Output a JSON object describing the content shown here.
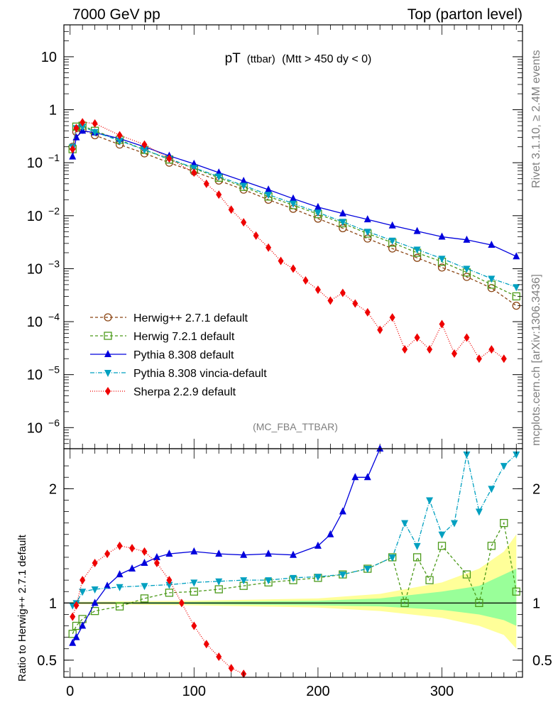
{
  "header": {
    "left": "7000 GeV pp",
    "right": "Top (parton level)"
  },
  "side_text": {
    "rivet": "Rivet 3.1.10, ≥ 2.4M events",
    "mcplots": "mcplots.cern.ch [arXiv:1306.3436]"
  },
  "plot_title": {
    "main": "pT",
    "sub": "(ttbar)",
    "cond": "(Mtt > 450 dy < 0)"
  },
  "analysis_label": "(MC_FBA_TTBAR)",
  "chart_data": [
    {
      "type": "line",
      "panel": "main",
      "scale": "log",
      "xlim": [
        -5,
        365
      ],
      "ylim": [
        4e-07,
        40
      ],
      "y_ticks": [
        {
          "v": 10,
          "label": "10"
        },
        {
          "v": 1,
          "label": "1"
        },
        {
          "v": 0.1,
          "label": "10",
          "exp": "−1"
        },
        {
          "v": 0.01,
          "label": "10",
          "exp": "−2"
        },
        {
          "v": 0.001,
          "label": "10",
          "exp": "−3"
        },
        {
          "v": 0.0001,
          "label": "10",
          "exp": "−4"
        },
        {
          "v": 1e-05,
          "label": "10",
          "exp": "−5"
        },
        {
          "v": 1e-06,
          "label": "10",
          "exp": "−6"
        }
      ],
      "legend_position": "lower-left",
      "series": [
        {
          "name": "Herwig++ 2.7.1 default",
          "color": "#8b4513",
          "marker": "circle-open",
          "dash": "4,3",
          "points": [
            [
              2,
              0.2
            ],
            [
              5,
              0.38
            ],
            [
              10,
              0.42
            ],
            [
              20,
              0.33
            ],
            [
              40,
              0.22
            ],
            [
              60,
              0.15
            ],
            [
              80,
              0.1
            ],
            [
              100,
              0.068
            ],
            [
              120,
              0.046
            ],
            [
              140,
              0.031
            ],
            [
              160,
              0.02
            ],
            [
              180,
              0.0135
            ],
            [
              200,
              0.0088
            ],
            [
              220,
              0.0058
            ],
            [
              240,
              0.0037
            ],
            [
              260,
              0.0024
            ],
            [
              280,
              0.0016
            ],
            [
              300,
              0.00105
            ],
            [
              320,
              0.0007
            ],
            [
              340,
              0.00043
            ],
            [
              360,
              0.0002
            ]
          ]
        },
        {
          "name": "Herwig 7.2.1 default",
          "color": "#4c9a1a",
          "marker": "square-open",
          "dash": "4,3",
          "points": [
            [
              2,
              0.18
            ],
            [
              5,
              0.48
            ],
            [
              10,
              0.5
            ],
            [
              20,
              0.4
            ],
            [
              40,
              0.27
            ],
            [
              60,
              0.175
            ],
            [
              80,
              0.115
            ],
            [
              100,
              0.078
            ],
            [
              120,
              0.052
            ],
            [
              140,
              0.035
            ],
            [
              160,
              0.023
            ],
            [
              180,
              0.0158
            ],
            [
              200,
              0.0107
            ],
            [
              220,
              0.0072
            ],
            [
              240,
              0.0046
            ],
            [
              260,
              0.0031
            ],
            [
              280,
              0.002
            ],
            [
              300,
              0.00135
            ],
            [
              320,
              0.00085
            ],
            [
              340,
              0.0005
            ],
            [
              360,
              0.0003
            ]
          ]
        },
        {
          "name": "Pythia 8.308 default",
          "color": "#0000dd",
          "marker": "triangle-up",
          "dash": "",
          "points": [
            [
              2,
              0.13
            ],
            [
              5,
              0.3
            ],
            [
              10,
              0.4
            ],
            [
              20,
              0.37
            ],
            [
              40,
              0.285
            ],
            [
              60,
              0.2
            ],
            [
              80,
              0.135
            ],
            [
              100,
              0.095
            ],
            [
              120,
              0.065
            ],
            [
              140,
              0.045
            ],
            [
              160,
              0.031
            ],
            [
              180,
              0.021
            ],
            [
              200,
              0.0145
            ],
            [
              220,
              0.011
            ],
            [
              240,
              0.0085
            ],
            [
              260,
              0.0065
            ],
            [
              280,
              0.0051
            ],
            [
              300,
              0.004
            ],
            [
              320,
              0.0035
            ],
            [
              340,
              0.0028
            ],
            [
              360,
              0.0017
            ]
          ]
        },
        {
          "name": "Pythia 8.308 vincia-default",
          "color": "#00a0c0",
          "marker": "triangle-down",
          "dash": "6,2,1,2",
          "points": [
            [
              2,
              0.2
            ],
            [
              5,
              0.45
            ],
            [
              10,
              0.48
            ],
            [
              20,
              0.38
            ],
            [
              40,
              0.26
            ],
            [
              60,
              0.175
            ],
            [
              80,
              0.118
            ],
            [
              100,
              0.08
            ],
            [
              120,
              0.055
            ],
            [
              140,
              0.037
            ],
            [
              160,
              0.025
            ],
            [
              180,
              0.017
            ],
            [
              200,
              0.0115
            ],
            [
              220,
              0.0077
            ],
            [
              240,
              0.005
            ],
            [
              260,
              0.0034
            ],
            [
              280,
              0.0023
            ],
            [
              300,
              0.00155
            ],
            [
              320,
              0.001
            ],
            [
              340,
              0.00065
            ],
            [
              360,
              0.00045
            ]
          ]
        },
        {
          "name": "Sherpa 2.2.9 default",
          "color": "#ee0000",
          "marker": "diamond",
          "dash": "1,2",
          "points": [
            [
              2,
              0.18
            ],
            [
              5,
              0.45
            ],
            [
              10,
              0.58
            ],
            [
              20,
              0.55
            ],
            [
              40,
              0.33
            ],
            [
              60,
              0.22
            ],
            [
              80,
              0.12
            ],
            [
              100,
              0.065
            ],
            [
              110,
              0.04
            ],
            [
              120,
              0.025
            ],
            [
              130,
              0.013
            ],
            [
              140,
              0.0075
            ],
            [
              150,
              0.0042
            ],
            [
              160,
              0.0025
            ],
            [
              170,
              0.0014
            ],
            [
              180,
              0.001
            ],
            [
              190,
              0.0006
            ],
            [
              200,
              0.0004
            ],
            [
              210,
              0.00025
            ],
            [
              220,
              0.00035
            ],
            [
              230,
              0.00022
            ],
            [
              240,
              0.00015
            ],
            [
              250,
              7e-05
            ],
            [
              260,
              0.00012
            ],
            [
              270,
              3e-05
            ],
            [
              280,
              5e-05
            ],
            [
              290,
              3e-05
            ],
            [
              300,
              9e-05
            ],
            [
              310,
              2.5e-05
            ],
            [
              320,
              5e-05
            ],
            [
              330,
              2e-05
            ],
            [
              340,
              3e-05
            ],
            [
              350,
              2e-05
            ]
          ]
        }
      ]
    },
    {
      "type": "line",
      "panel": "ratio",
      "ylabel": "Ratio to Herwig++ 2.7.1 default",
      "xlim": [
        -5,
        365
      ],
      "ylim": [
        0.35,
        2.35
      ],
      "y_ticks": [
        {
          "v": 0.5,
          "label": "0.5"
        },
        {
          "v": 1,
          "label": "1"
        },
        {
          "v": 2,
          "label": "2"
        }
      ],
      "x_ticks": [
        {
          "v": 0,
          "label": "0"
        },
        {
          "v": 100,
          "label": "100"
        },
        {
          "v": 200,
          "label": "200"
        },
        {
          "v": 300,
          "label": "300"
        }
      ],
      "band_yellow": [
        [
          0,
          0.99,
          1.01
        ],
        [
          100,
          0.98,
          1.02
        ],
        [
          200,
          0.96,
          1.04
        ],
        [
          250,
          0.93,
          1.08
        ],
        [
          300,
          0.87,
          1.18
        ],
        [
          330,
          0.8,
          1.3
        ],
        [
          350,
          0.72,
          1.45
        ],
        [
          360,
          0.6,
          1.6
        ]
      ],
      "band_green": [
        [
          0,
          0.995,
          1.005
        ],
        [
          100,
          0.99,
          1.01
        ],
        [
          200,
          0.98,
          1.02
        ],
        [
          250,
          0.97,
          1.04
        ],
        [
          300,
          0.94,
          1.1
        ],
        [
          330,
          0.9,
          1.15
        ],
        [
          350,
          0.85,
          1.25
        ],
        [
          360,
          0.8,
          1.3
        ]
      ],
      "series": [
        {
          "name": "Herwig 7.2.1 default",
          "color": "#4c9a1a",
          "marker": "square-open",
          "dash": "4,3",
          "points": [
            [
              2,
              0.73
            ],
            [
              5,
              0.8
            ],
            [
              10,
              0.86
            ],
            [
              20,
              0.93
            ],
            [
              40,
              0.97
            ],
            [
              60,
              1.04
            ],
            [
              80,
              1.09
            ],
            [
              100,
              1.1
            ],
            [
              120,
              1.12
            ],
            [
              140,
              1.15
            ],
            [
              160,
              1.18
            ],
            [
              180,
              1.2
            ],
            [
              200,
              1.22
            ],
            [
              220,
              1.25
            ],
            [
              240,
              1.3
            ],
            [
              260,
              1.4
            ],
            [
              270,
              1.0
            ],
            [
              280,
              1.4
            ],
            [
              290,
              1.2
            ],
            [
              300,
              1.5
            ],
            [
              320,
              1.25
            ],
            [
              330,
              1.0
            ],
            [
              340,
              1.5
            ],
            [
              350,
              1.7
            ],
            [
              360,
              1.1
            ]
          ]
        },
        {
          "name": "Pythia 8.308 default",
          "color": "#0000dd",
          "marker": "triangle-up",
          "dash": "",
          "points": [
            [
              2,
              0.65
            ],
            [
              5,
              0.7
            ],
            [
              10,
              0.8
            ],
            [
              20,
              1.0
            ],
            [
              30,
              1.15
            ],
            [
              40,
              1.25
            ],
            [
              50,
              1.3
            ],
            [
              60,
              1.35
            ],
            [
              70,
              1.4
            ],
            [
              80,
              1.43
            ],
            [
              100,
              1.45
            ],
            [
              120,
              1.43
            ],
            [
              140,
              1.42
            ],
            [
              160,
              1.43
            ],
            [
              180,
              1.42
            ],
            [
              200,
              1.5
            ],
            [
              210,
              1.6
            ],
            [
              220,
              1.8
            ],
            [
              230,
              2.1
            ],
            [
              240,
              2.1
            ],
            [
              250,
              2.35
            ]
          ]
        },
        {
          "name": "Pythia 8.308 vincia-default",
          "color": "#00a0c0",
          "marker": "triangle-down",
          "dash": "6,2,1,2",
          "points": [
            [
              2,
              0.98
            ],
            [
              5,
              1.0
            ],
            [
              10,
              1.1
            ],
            [
              20,
              1.12
            ],
            [
              40,
              1.14
            ],
            [
              60,
              1.15
            ],
            [
              80,
              1.16
            ],
            [
              100,
              1.18
            ],
            [
              120,
              1.19
            ],
            [
              140,
              1.2
            ],
            [
              160,
              1.2
            ],
            [
              180,
              1.22
            ],
            [
              200,
              1.23
            ],
            [
              220,
              1.25
            ],
            [
              240,
              1.3
            ],
            [
              260,
              1.4
            ],
            [
              270,
              1.7
            ],
            [
              280,
              1.5
            ],
            [
              290,
              1.9
            ],
            [
              300,
              1.6
            ],
            [
              310,
              1.7
            ],
            [
              320,
              2.3
            ],
            [
              330,
              1.8
            ],
            [
              340,
              2.0
            ],
            [
              350,
              2.2
            ],
            [
              360,
              2.3
            ]
          ]
        },
        {
          "name": "Sherpa 2.2.9 default",
          "color": "#ee0000",
          "marker": "diamond",
          "dash": "1,2",
          "points": [
            [
              2,
              0.88
            ],
            [
              5,
              0.98
            ],
            [
              10,
              1.2
            ],
            [
              20,
              1.35
            ],
            [
              30,
              1.43
            ],
            [
              40,
              1.5
            ],
            [
              50,
              1.48
            ],
            [
              60,
              1.45
            ],
            [
              70,
              1.35
            ],
            [
              80,
              1.2
            ],
            [
              90,
              1.0
            ],
            [
              100,
              0.8
            ],
            [
              110,
              0.64
            ],
            [
              120,
              0.53
            ],
            [
              130,
              0.43
            ],
            [
              140,
              0.38
            ]
          ]
        }
      ]
    }
  ]
}
